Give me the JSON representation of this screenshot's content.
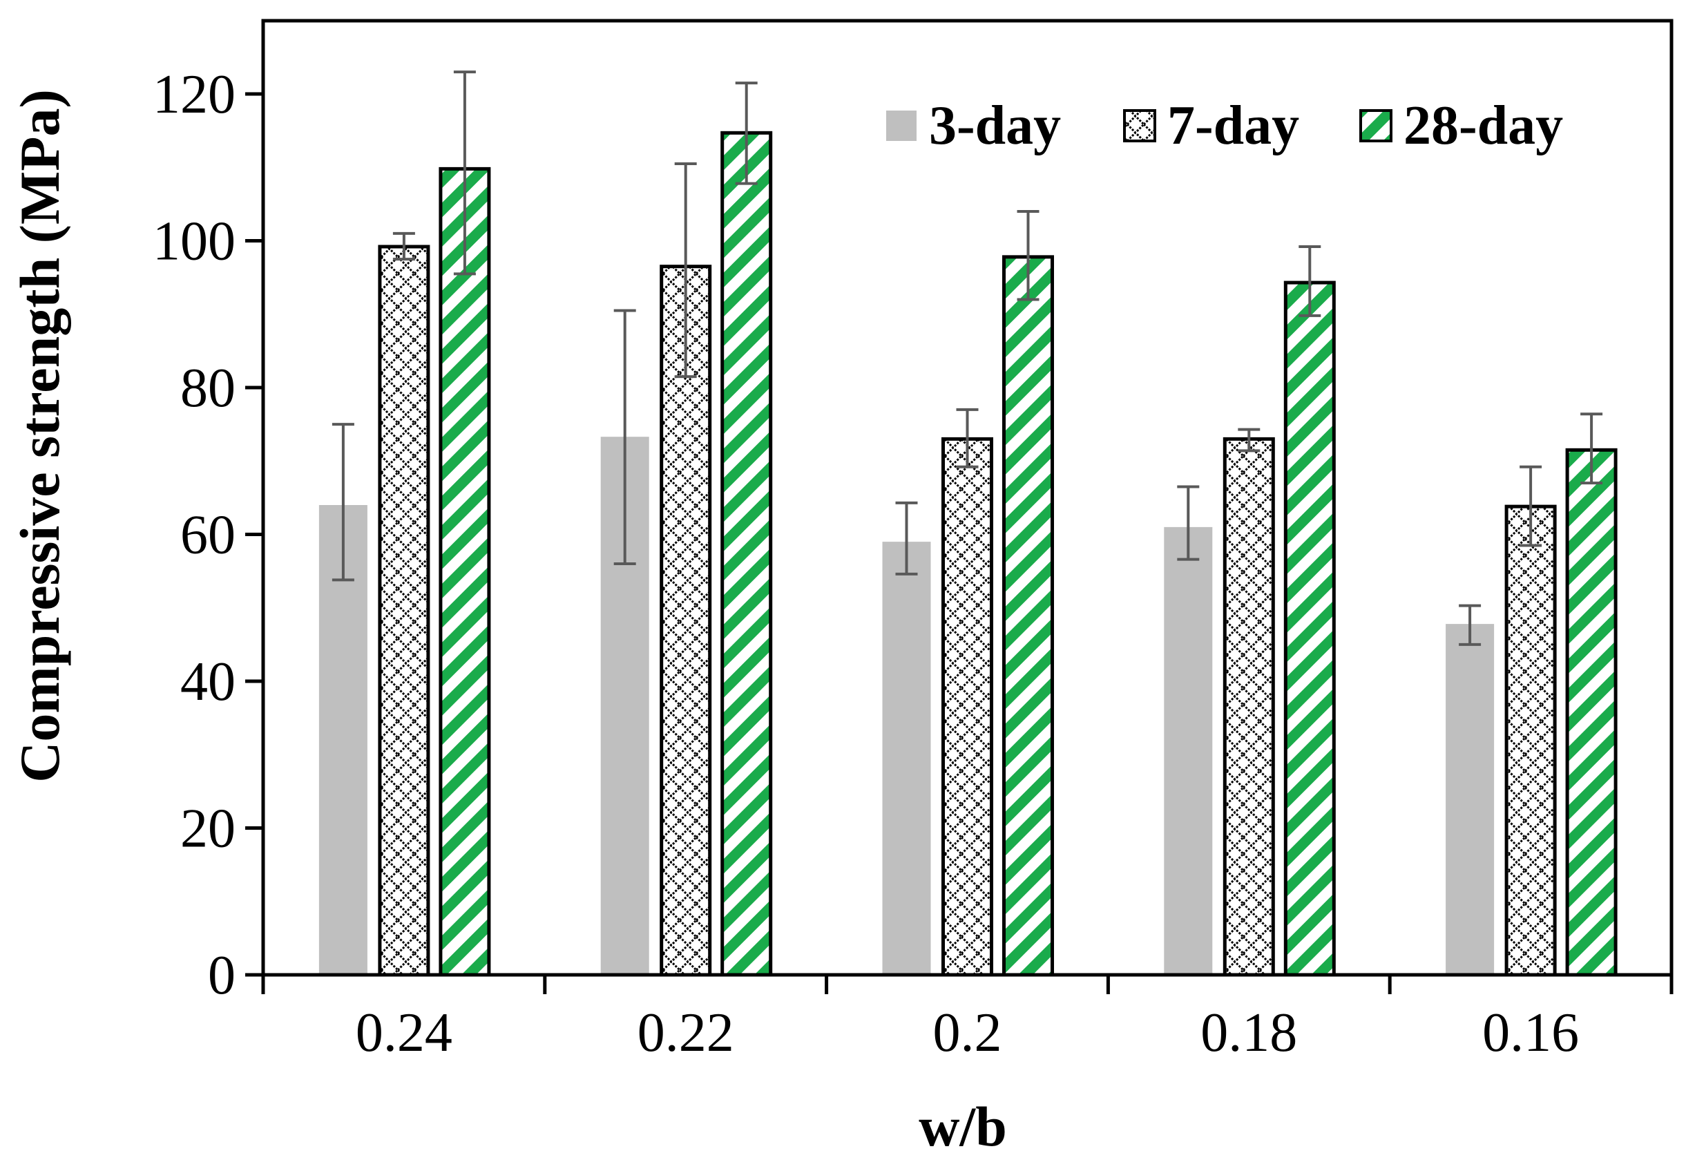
{
  "chart_data": {
    "type": "bar",
    "title": "",
    "xlabel": "w/b",
    "ylabel": "Compressive strength (MPa)",
    "categories": [
      "0.24",
      "0.22",
      "0.2",
      "0.18",
      "0.16"
    ],
    "ylim": [
      0,
      130
    ],
    "yticks": [
      0,
      20,
      40,
      60,
      80,
      100,
      120
    ],
    "ytick_labels": [
      "0",
      "20",
      "40",
      "60",
      "80",
      "100",
      "120"
    ],
    "grid": false,
    "legend_position": "top-right",
    "series": [
      {
        "name": "3-day",
        "values": [
          64,
          73.3,
          59,
          61,
          47.8
        ],
        "error_low": [
          53.8,
          56,
          54.6,
          56.6,
          45
        ],
        "error_high": [
          75,
          90.5,
          64.3,
          66.5,
          50.3
        ],
        "fill": "#bfbfbf",
        "pattern": "solid"
      },
      {
        "name": "7-day",
        "values": [
          99.2,
          96.5,
          73,
          73,
          63.8
        ],
        "error_low": [
          97.5,
          81.5,
          69.2,
          71.4,
          58.5
        ],
        "error_high": [
          101,
          110.5,
          77,
          74.3,
          69.2
        ],
        "fill": "#000000",
        "pattern": "diamond-lattice"
      },
      {
        "name": "28-day",
        "values": [
          109.8,
          114.7,
          97.8,
          94.3,
          71.5
        ],
        "error_low": [
          95.5,
          107.8,
          92,
          89.8,
          67
        ],
        "error_high": [
          123,
          121.5,
          104,
          99.2,
          76.4
        ],
        "fill": "#1aab4b",
        "pattern": "diagonal-stripes"
      }
    ],
    "colors": {
      "axis": "#000000",
      "error_bar": "#595959",
      "bar_outline": "#000000"
    }
  }
}
